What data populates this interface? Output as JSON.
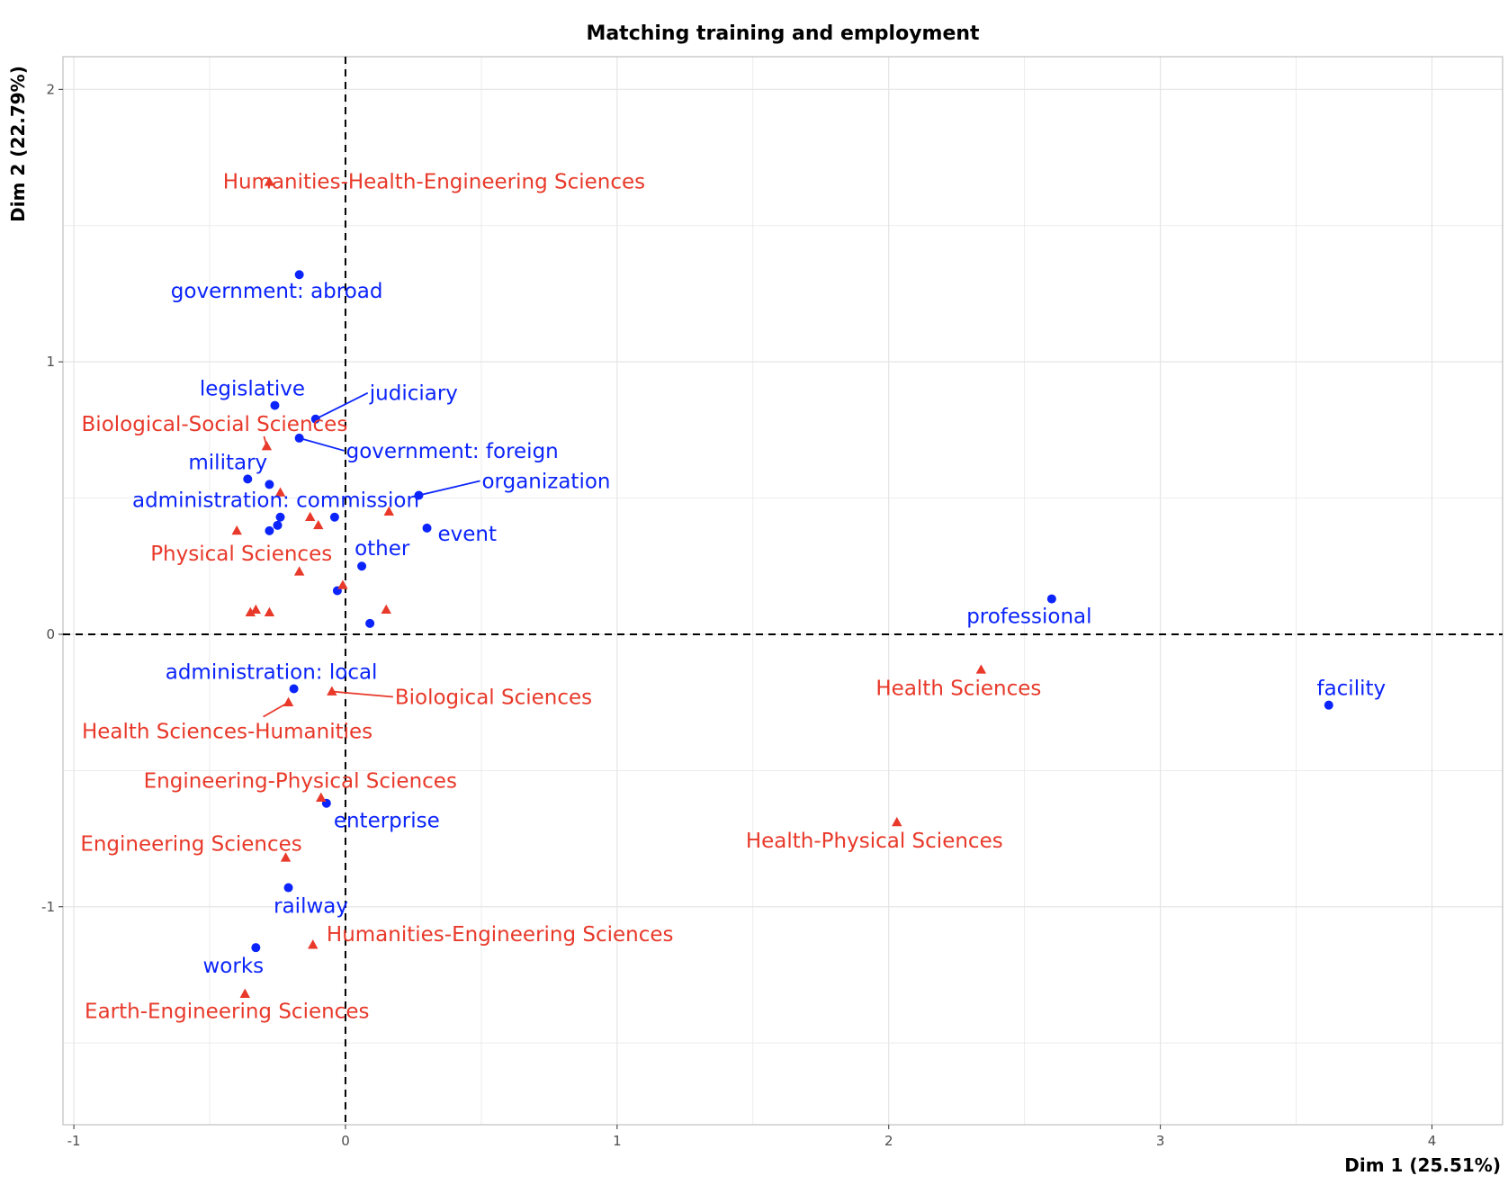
{
  "chart_data": {
    "type": "scatter",
    "title": "Matching training and employment",
    "xlabel": "Dim 1 (25.51%)",
    "ylabel": "Dim 2 (22.79%)",
    "xlim": [
      -1.04,
      4.26
    ],
    "ylim": [
      -1.8,
      2.12
    ],
    "x_ticks": [
      -1,
      0,
      1,
      2,
      3,
      4
    ],
    "y_ticks": [
      -1,
      0,
      1,
      2
    ],
    "x_tick_labels": [
      "-1",
      "0",
      "1",
      "2",
      "3",
      "4"
    ],
    "y_tick_labels": [
      "-1",
      "0",
      "1",
      "2"
    ],
    "grid": true,
    "reference_lines": {
      "x": 0,
      "y": 0,
      "style": "dashed"
    },
    "colors": {
      "employment": "#0b24fb",
      "training": "#e8392a",
      "grid": "#e5e5e5"
    },
    "series": [
      {
        "group": "employment",
        "marker": "circle",
        "points": [
          {
            "x": -0.17,
            "y": 1.32,
            "label": "government: abroad"
          },
          {
            "x": -0.26,
            "y": 0.84,
            "label": "legislative"
          },
          {
            "x": -0.11,
            "y": 0.79,
            "label": "judiciary"
          },
          {
            "x": -0.17,
            "y": 0.72,
            "label": "government: foreign"
          },
          {
            "x": -0.36,
            "y": 0.57,
            "label": "military"
          },
          {
            "x": -0.28,
            "y": 0.55,
            "label": ""
          },
          {
            "x": 0.27,
            "y": 0.51,
            "label": "organization"
          },
          {
            "x": -0.24,
            "y": 0.43,
            "label": "administration: commission"
          },
          {
            "x": -0.25,
            "y": 0.4,
            "label": ""
          },
          {
            "x": -0.28,
            "y": 0.38,
            "label": ""
          },
          {
            "x": -0.04,
            "y": 0.43,
            "label": ""
          },
          {
            "x": 0.3,
            "y": 0.39,
            "label": "event"
          },
          {
            "x": 0.06,
            "y": 0.25,
            "label": "other"
          },
          {
            "x": -0.03,
            "y": 0.16,
            "label": ""
          },
          {
            "x": 0.09,
            "y": 0.04,
            "label": ""
          },
          {
            "x": 2.6,
            "y": 0.13,
            "label": "professional"
          },
          {
            "x": 3.62,
            "y": -0.26,
            "label": "facility"
          },
          {
            "x": -0.19,
            "y": -0.2,
            "label": "administration: local"
          },
          {
            "x": -0.07,
            "y": -0.62,
            "label": "enterprise"
          },
          {
            "x": -0.21,
            "y": -0.93,
            "label": "railway"
          },
          {
            "x": -0.33,
            "y": -1.15,
            "label": "works"
          }
        ]
      },
      {
        "group": "training",
        "marker": "triangle",
        "points": [
          {
            "x": -0.28,
            "y": 1.66,
            "label": "Humanities-Health-Engineering Sciences"
          },
          {
            "x": -0.29,
            "y": 0.69,
            "label": "Biological-Social Sciences"
          },
          {
            "x": -0.24,
            "y": 0.52,
            "label": ""
          },
          {
            "x": -0.13,
            "y": 0.43,
            "label": ""
          },
          {
            "x": -0.1,
            "y": 0.4,
            "label": ""
          },
          {
            "x": 0.16,
            "y": 0.45,
            "label": ""
          },
          {
            "x": -0.4,
            "y": 0.38,
            "label": "Physical Sciences"
          },
          {
            "x": -0.17,
            "y": 0.23,
            "label": ""
          },
          {
            "x": -0.01,
            "y": 0.18,
            "label": ""
          },
          {
            "x": -0.35,
            "y": 0.08,
            "label": ""
          },
          {
            "x": -0.33,
            "y": 0.09,
            "label": ""
          },
          {
            "x": -0.28,
            "y": 0.08,
            "label": ""
          },
          {
            "x": 0.15,
            "y": 0.09,
            "label": ""
          },
          {
            "x": 2.34,
            "y": -0.13,
            "label": "Health Sciences"
          },
          {
            "x": -0.05,
            "y": -0.21,
            "label": "Biological Sciences"
          },
          {
            "x": -0.21,
            "y": -0.25,
            "label": "Health Sciences-Humanities"
          },
          {
            "x": -0.09,
            "y": -0.6,
            "label": "Engineering-Physical Sciences"
          },
          {
            "x": 2.03,
            "y": -0.69,
            "label": "Health-Physical Sciences"
          },
          {
            "x": -0.22,
            "y": -0.82,
            "label": "Engineering Sciences"
          },
          {
            "x": -0.12,
            "y": -1.14,
            "label": "Humanities-Engineering Sciences"
          },
          {
            "x": -0.37,
            "y": -1.32,
            "label": "Earth-Engineering Sciences"
          }
        ]
      }
    ]
  }
}
